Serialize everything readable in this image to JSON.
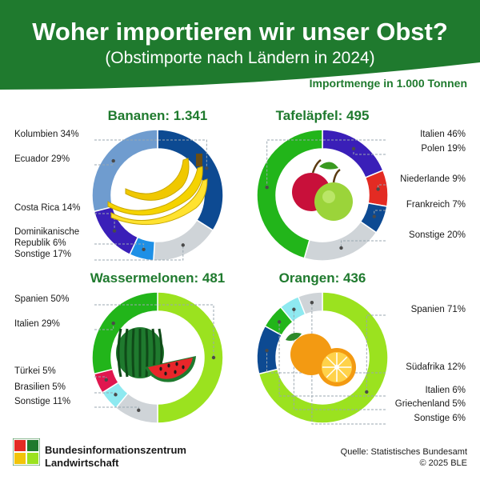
{
  "header": {
    "title": "Woher importieren wir unser Obst?",
    "subtitle": "(Obstimporte nach Ländern in 2024)",
    "unit_note": "Importmenge in 1.000 Tonnen"
  },
  "footer": {
    "org_line1": "Bundesinformationszentrum",
    "org_line2": "Landwirtschaft",
    "source": "Quelle: Statistisches Bundesamt",
    "copyright": "© 2025 BLE"
  },
  "colors": {
    "header_green": "#1f7a2e",
    "title_green": "#1f7a2e",
    "leader": "#9aa7b0"
  },
  "chart_data": [
    {
      "type": "pie",
      "title": "Bananen: 1.341",
      "fruit_icon": "banana-icon",
      "slices": [
        {
          "label": "Kolumbien 34%",
          "value": 34,
          "color": "#0d4a92"
        },
        {
          "label": "Sonstige 17%",
          "value": 17,
          "color": "#cfd4d8"
        },
        {
          "label": "Dominikanische Republik 6%",
          "value": 6,
          "color": "#1e90e6"
        },
        {
          "label": "Costa Rica 14%",
          "value": 14,
          "color": "#3a1fb8"
        },
        {
          "label": "Ecuador 29%",
          "value": 29,
          "color": "#6f9ccf"
        }
      ]
    },
    {
      "type": "pie",
      "title": "Tafeläpfel: 495",
      "fruit_icon": "apple-icon",
      "slices": [
        {
          "label": "Polen 19%",
          "value": 19,
          "color": "#3a1fb8"
        },
        {
          "label": "Niederlande 9%",
          "value": 9,
          "color": "#e32b23"
        },
        {
          "label": "Frankreich 7%",
          "value": 7,
          "color": "#0d4a92"
        },
        {
          "label": "Sonstige 20%",
          "value": 20,
          "color": "#cfd4d8"
        },
        {
          "label": "Italien 46%",
          "value": 46,
          "color": "#22b51a"
        }
      ]
    },
    {
      "type": "pie",
      "title": "Wassermelonen: 481",
      "fruit_icon": "watermelon-icon",
      "slices": [
        {
          "label": "Spanien 50%",
          "value": 50,
          "color": "#9be21f"
        },
        {
          "label": "Sonstige 11%",
          "value": 11,
          "color": "#cfd4d8"
        },
        {
          "label": "Brasilien 5%",
          "value": 5,
          "color": "#8ee9f0"
        },
        {
          "label": "Türkei 5%",
          "value": 5,
          "color": "#e0174f"
        },
        {
          "label": "Italien 29%",
          "value": 29,
          "color": "#22b51a"
        }
      ]
    },
    {
      "type": "pie",
      "title": "Orangen: 436",
      "fruit_icon": "orange-icon",
      "slices": [
        {
          "label": "Spanien 71%",
          "value": 71,
          "color": "#9be21f"
        },
        {
          "label": "Südafrika 12%",
          "value": 12,
          "color": "#0d4a92"
        },
        {
          "label": "Italien 6%",
          "value": 6,
          "color": "#22b51a"
        },
        {
          "label": "Griechenland 5%",
          "value": 5,
          "color": "#8ee9f0"
        },
        {
          "label": "Sonstige 6%",
          "value": 6,
          "color": "#cfd4d8"
        }
      ]
    }
  ]
}
